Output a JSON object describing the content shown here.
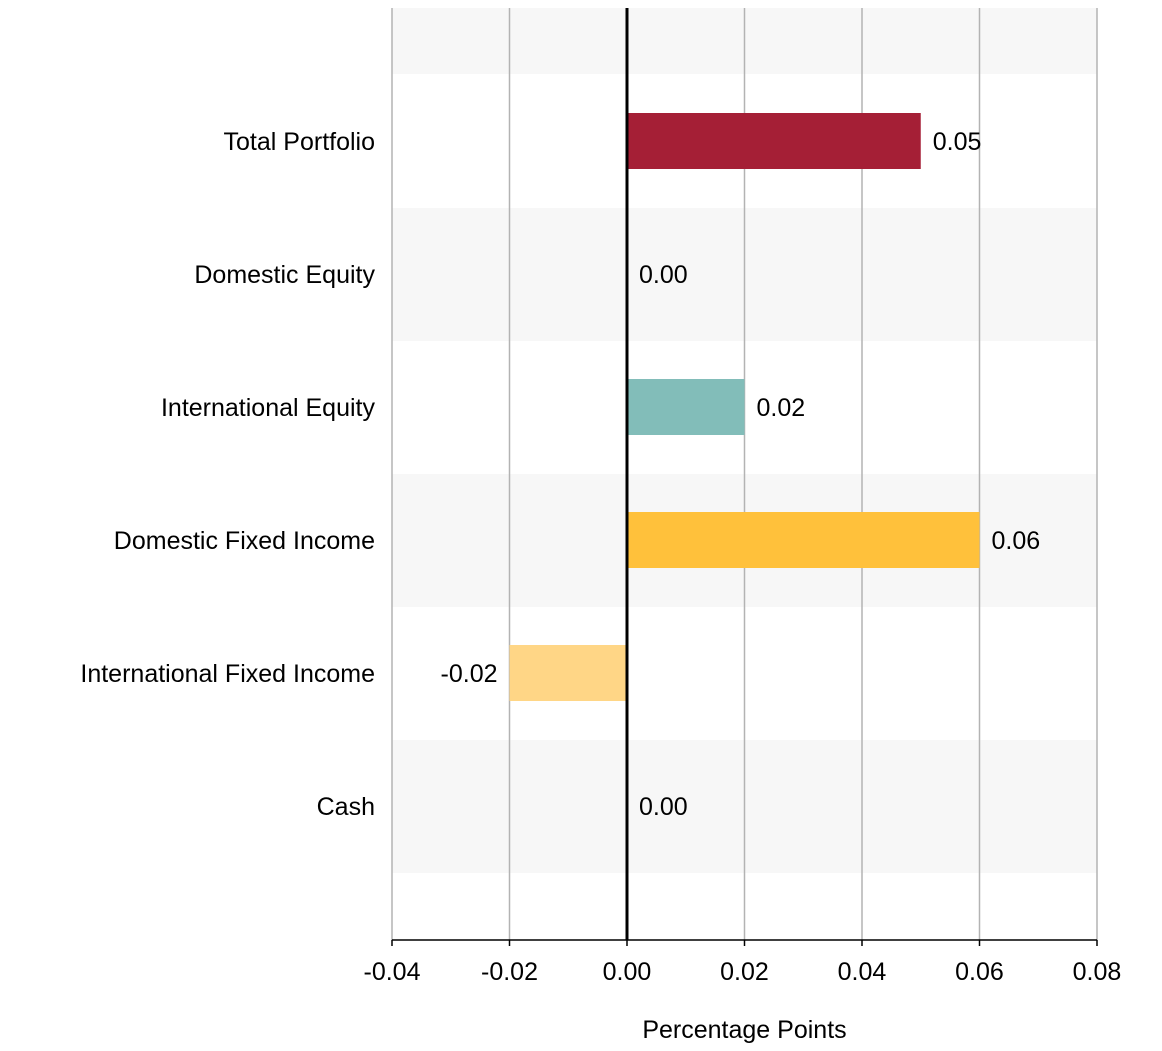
{
  "chart_data": {
    "type": "bar",
    "orientation": "horizontal",
    "categories": [
      "Total Portfolio",
      "Domestic Equity",
      "International Equity",
      "Domestic Fixed Income",
      "International Fixed Income",
      "Cash"
    ],
    "values": [
      0.05,
      0.0,
      0.02,
      0.06,
      -0.02,
      0.0
    ],
    "value_labels": [
      "0.05",
      "0.00",
      "0.02",
      "0.06",
      "-0.02",
      "0.00"
    ],
    "bar_colors": [
      "#a51f36",
      "#a51f36",
      "#82bdb9",
      "#ffc13b",
      "#ffd686",
      "#a51f36"
    ],
    "xlabel": "Percentage Points",
    "ylabel": "",
    "title": "",
    "xlim": [
      -0.04,
      0.08
    ],
    "x_ticks": [
      -0.04,
      -0.02,
      0.0,
      0.02,
      0.04,
      0.06,
      0.08
    ],
    "x_tick_labels": [
      "-0.04",
      "-0.02",
      "0.00",
      "0.02",
      "0.04",
      "0.06",
      "0.08"
    ],
    "grid": "vertical",
    "band_color": "#f7f7f7",
    "gridline_color": "#b3b3b3",
    "zero_line_color": "#000000",
    "legend": "none"
  }
}
